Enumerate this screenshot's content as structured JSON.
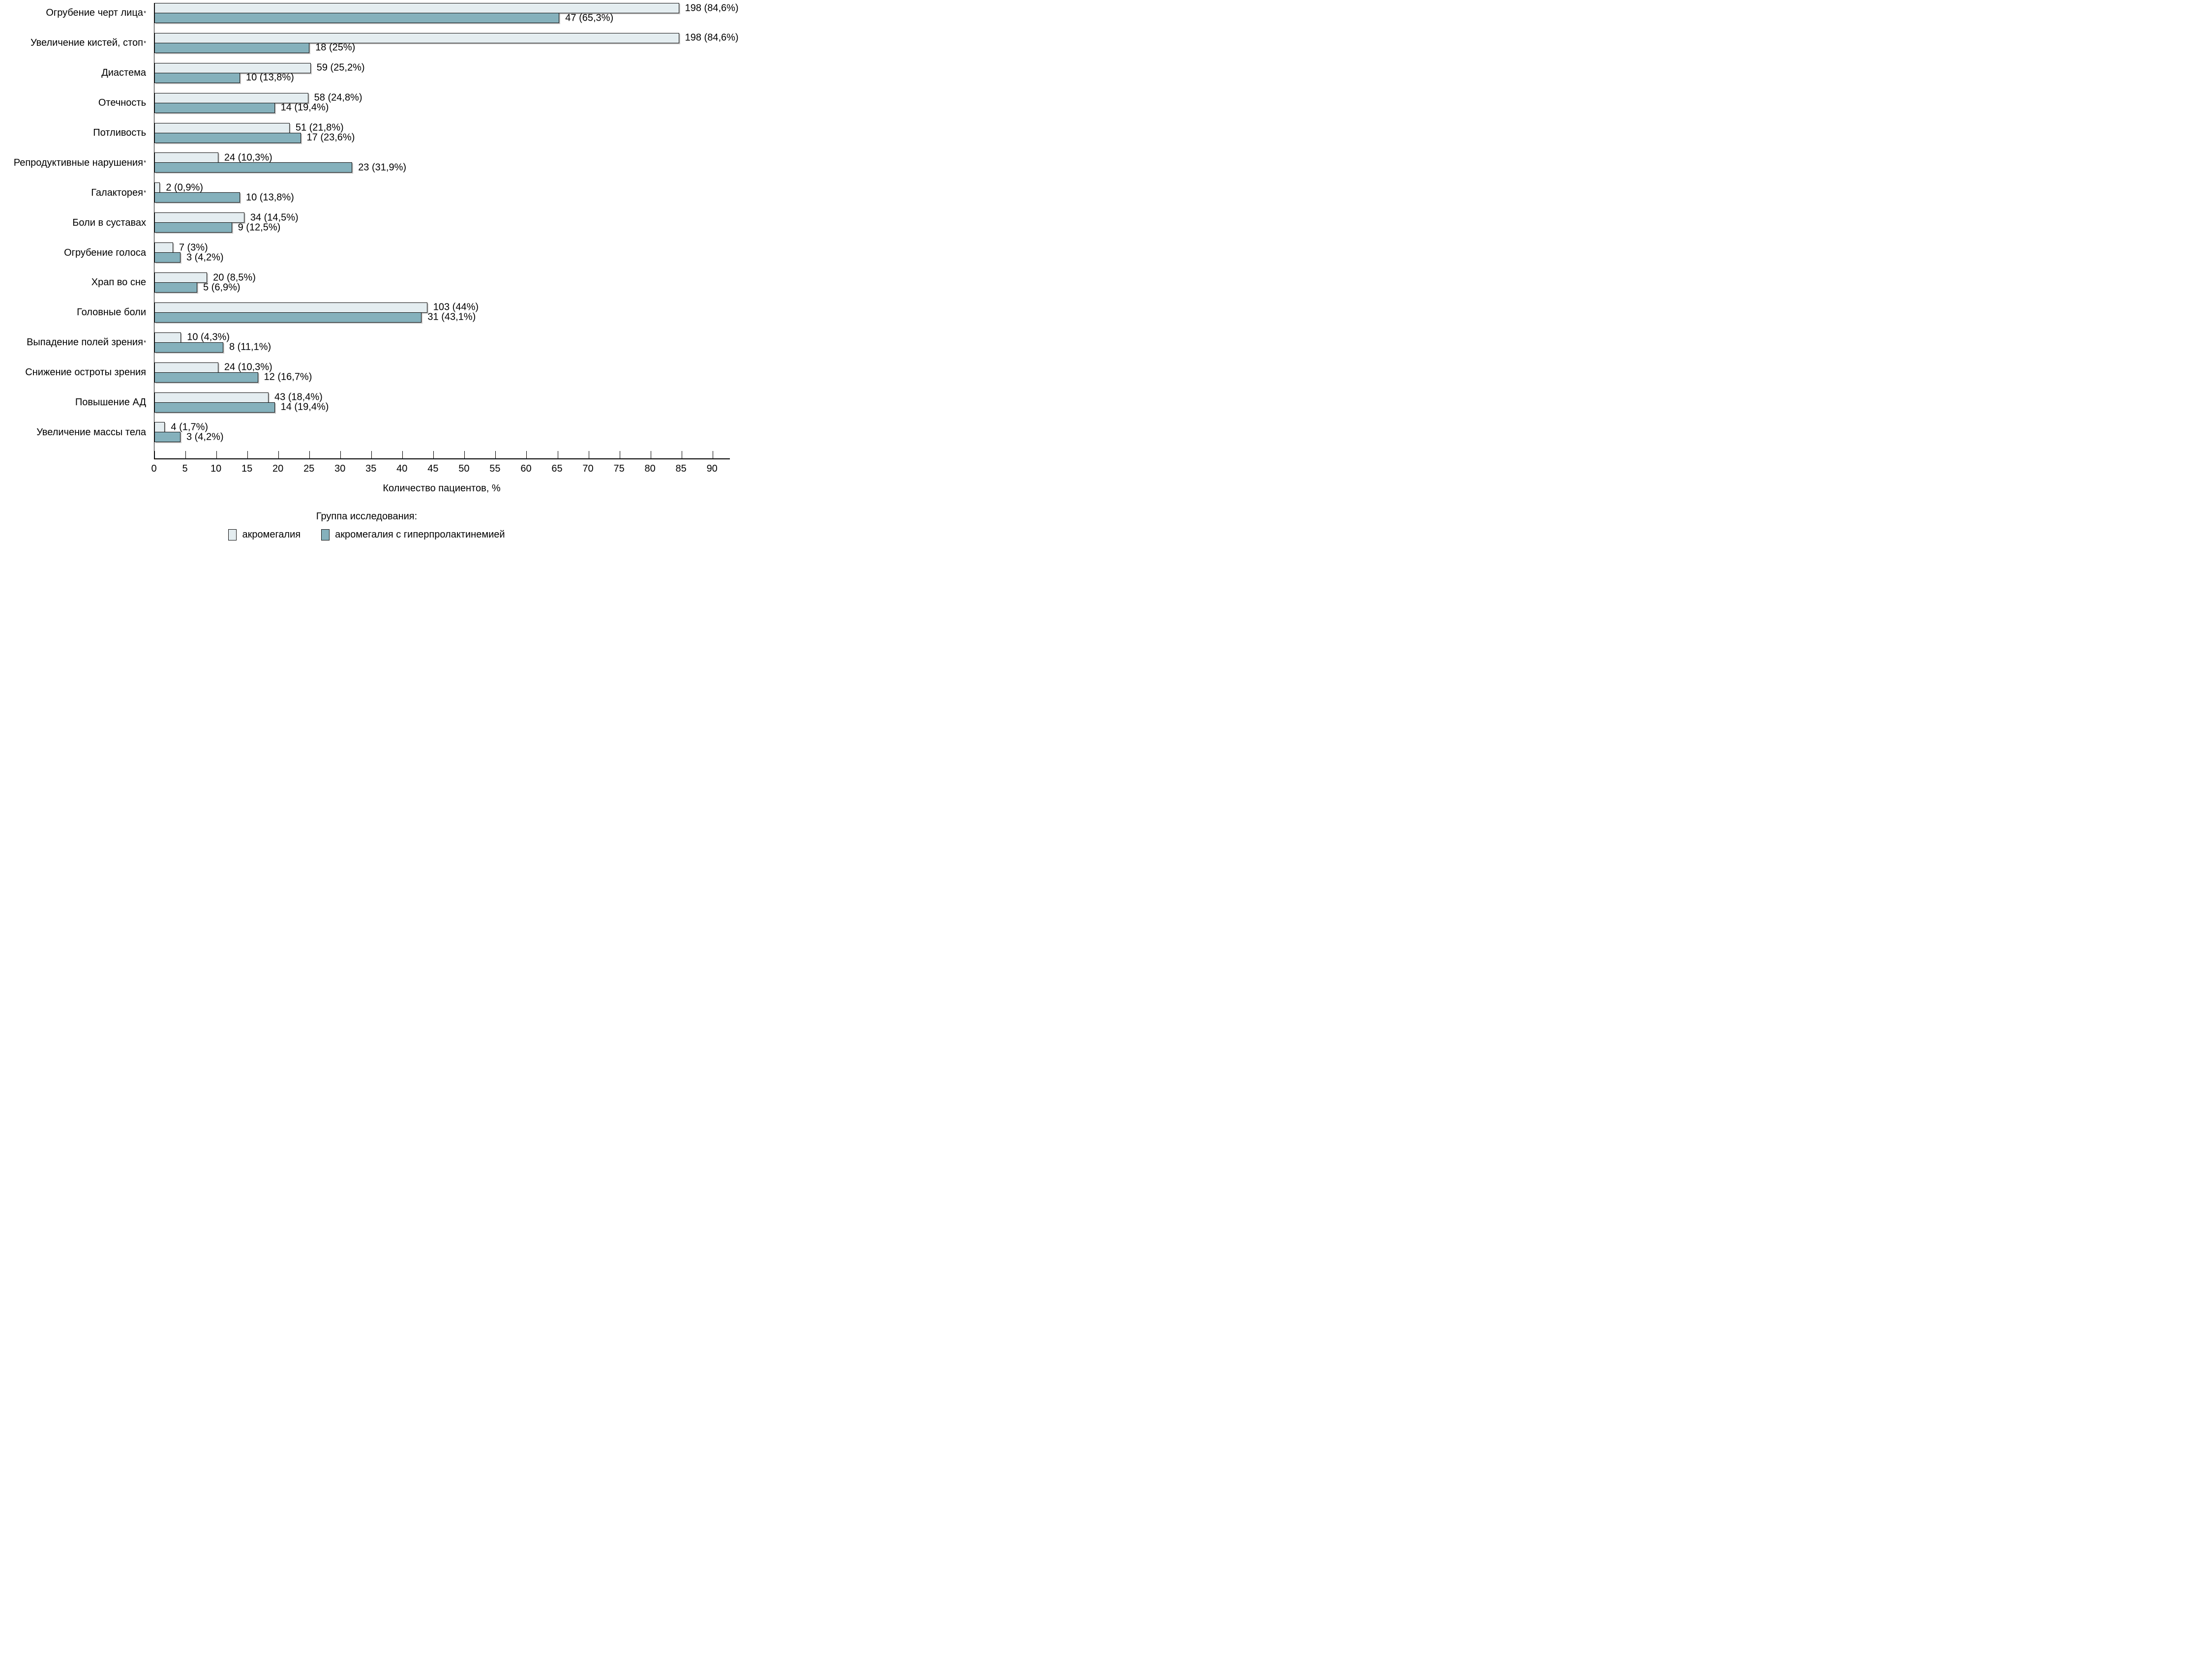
{
  "chart_data": {
    "type": "bar",
    "orientation": "horizontal",
    "title": "",
    "xlabel": "Количество пациентов, %",
    "x_ticks": [
      0,
      5,
      10,
      15,
      20,
      25,
      30,
      35,
      40,
      45,
      50,
      55,
      60,
      65,
      70,
      75,
      80,
      85,
      90
    ],
    "axis_max": 92.8,
    "grid": false,
    "legend_position": "bottom",
    "series_names": [
      "акромегалия",
      "акромегалия с гиперпролактинемией"
    ],
    "categories": [
      {
        "label": "Огрубение черт лица",
        "star": true,
        "bars": [
          {
            "group": "акромегалия",
            "count": 198,
            "pct": 84.6,
            "label": "198 (84,6%)"
          },
          {
            "group": "акромегалия с гиперпролактинемией",
            "count": 47,
            "pct": 65.3,
            "label": "47 (65,3%)"
          }
        ]
      },
      {
        "label": "Увеличение кистей, стоп",
        "star": true,
        "bars": [
          {
            "group": "акромегалия",
            "count": 198,
            "pct": 84.6,
            "label": "198 (84,6%)"
          },
          {
            "group": "акромегалия с гиперпролактинемией",
            "count": 18,
            "pct": 25.0,
            "label": "18 (25%)"
          }
        ]
      },
      {
        "label": "Диастема",
        "star": false,
        "bars": [
          {
            "group": "акромегалия",
            "count": 59,
            "pct": 25.2,
            "label": "59 (25,2%)"
          },
          {
            "group": "акромегалия с гиперпролактинемией",
            "count": 10,
            "pct": 13.8,
            "label": "10 (13,8%)"
          }
        ]
      },
      {
        "label": "Отечность",
        "star": false,
        "bars": [
          {
            "group": "акромегалия",
            "count": 58,
            "pct": 24.8,
            "label": "58 (24,8%)"
          },
          {
            "group": "акромегалия с гиперпролактинемией",
            "count": 14,
            "pct": 19.4,
            "label": "14 (19,4%)"
          }
        ]
      },
      {
        "label": "Потливость",
        "star": false,
        "bars": [
          {
            "group": "акромегалия",
            "count": 51,
            "pct": 21.8,
            "label": "51 (21,8%)"
          },
          {
            "group": "акромегалия с гиперпролактинемией",
            "count": 17,
            "pct": 23.6,
            "label": "17 (23,6%)"
          }
        ]
      },
      {
        "label": "Репродуктивные нарушения",
        "star": true,
        "bars": [
          {
            "group": "акромегалия",
            "count": 24,
            "pct": 10.3,
            "label": "24 (10,3%)"
          },
          {
            "group": "акромегалия с гиперпролактинемией",
            "count": 23,
            "pct": 31.9,
            "label": "23 (31,9%)"
          }
        ]
      },
      {
        "label": "Галакторея",
        "star": true,
        "bars": [
          {
            "group": "акромегалия",
            "count": 2,
            "pct": 0.9,
            "label": "2 (0,9%)"
          },
          {
            "group": "акромегалия с гиперпролактинемией",
            "count": 10,
            "pct": 13.8,
            "label": "10 (13,8%)"
          }
        ]
      },
      {
        "label": "Боли в суставах",
        "star": false,
        "bars": [
          {
            "group": "акромегалия",
            "count": 34,
            "pct": 14.5,
            "label": "34 (14,5%)"
          },
          {
            "group": "акромегалия с гиперпролактинемией",
            "count": 9,
            "pct": 12.5,
            "label": "9 (12,5%)"
          }
        ]
      },
      {
        "label": "Огрубение голоса",
        "star": false,
        "bars": [
          {
            "group": "акромегалия",
            "count": 7,
            "pct": 3.0,
            "label": "7 (3%)"
          },
          {
            "group": "акромегалия с гиперпролактинемией",
            "count": 3,
            "pct": 4.2,
            "label": "3 (4,2%)"
          }
        ]
      },
      {
        "label": "Храп во сне",
        "star": false,
        "bars": [
          {
            "group": "акромегалия",
            "count": 20,
            "pct": 8.5,
            "label": "20 (8,5%)"
          },
          {
            "group": "акромегалия с гиперпролактинемией",
            "count": 5,
            "pct": 6.9,
            "label": "5 (6,9%)"
          }
        ]
      },
      {
        "label": "Головные боли",
        "star": false,
        "bars": [
          {
            "group": "акромегалия",
            "count": 103,
            "pct": 44.0,
            "label": "103 (44%)"
          },
          {
            "group": "акромегалия с гиперпролактинемией",
            "count": 31,
            "pct": 43.1,
            "label": "31 (43,1%)"
          }
        ]
      },
      {
        "label": "Выпадение полей зрения",
        "star": true,
        "bars": [
          {
            "group": "акромегалия",
            "count": 10,
            "pct": 4.3,
            "label": "10 (4,3%)"
          },
          {
            "group": "акромегалия с гиперпролактинемией",
            "count": 8,
            "pct": 11.1,
            "label": "8 (11,1%)"
          }
        ]
      },
      {
        "label": "Снижение остроты зрения",
        "star": false,
        "bars": [
          {
            "group": "акромегалия",
            "count": 24,
            "pct": 10.3,
            "label": "24 (10,3%)"
          },
          {
            "group": "акромегалия с гиперпролактинемией",
            "count": 12,
            "pct": 16.7,
            "label": "12 (16,7%)"
          }
        ]
      },
      {
        "label": "Повышение АД",
        "star": false,
        "bars": [
          {
            "group": "акромегалия",
            "count": 43,
            "pct": 18.4,
            "label": "43 (18,4%)"
          },
          {
            "group": "акромегалия с гиперпролактинемией",
            "count": 14,
            "pct": 19.4,
            "label": "14 (19,4%)"
          }
        ]
      },
      {
        "label": "Увеличение массы тела",
        "star": false,
        "bars": [
          {
            "group": "акромегалия",
            "count": 4,
            "pct": 1.7,
            "label": "4 (1,7%)"
          },
          {
            "group": "акромегалия с гиперпролактинемией",
            "count": 3,
            "pct": 4.2,
            "label": "3 (4,2%)"
          }
        ]
      }
    ]
  },
  "legend": {
    "title": "Группа исследования:",
    "items": [
      {
        "label": "акромегалия",
        "color": "#e4edf0"
      },
      {
        "label": "акромегалия с гиперпролактинемией",
        "color": "#85b1bc"
      }
    ]
  },
  "colors": {
    "bar_light": "#e4edf0",
    "bar_teal": "#85b1bc",
    "bar_border": "#111111",
    "axis": "#000000",
    "text": "#000000",
    "background": "#ffffff"
  }
}
